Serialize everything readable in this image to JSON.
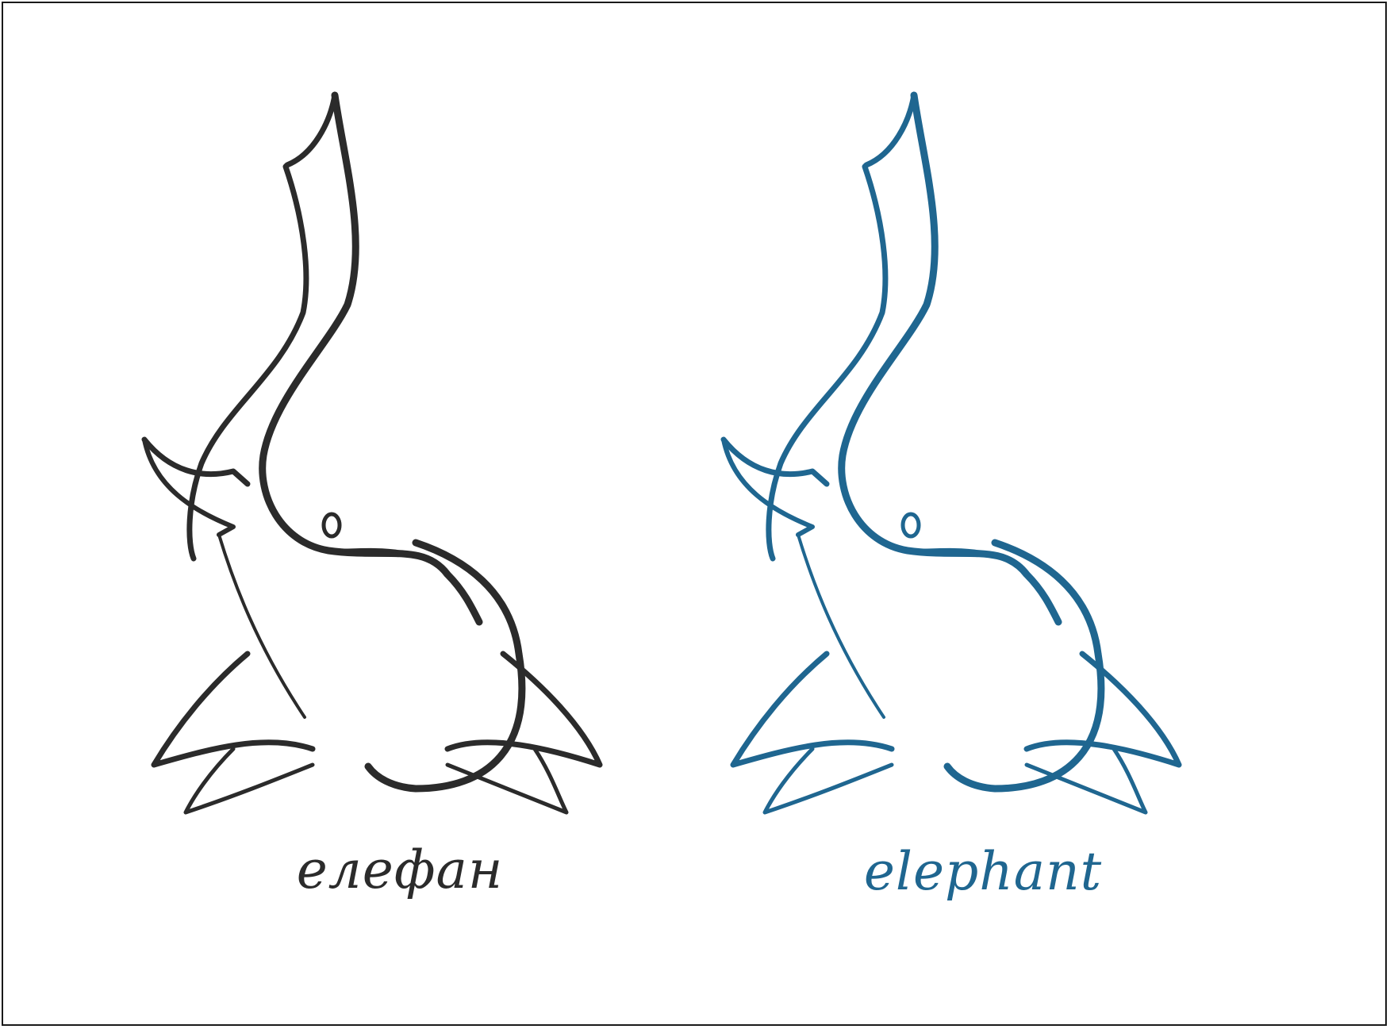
{
  "logos": [
    {
      "wordmark": "елефан",
      "color": "#2b2b2b",
      "icon": "elephant-trunk-raised-icon"
    },
    {
      "wordmark": "elephant",
      "color": "#1f6690",
      "icon": "elephant-trunk-raised-icon"
    }
  ],
  "colors": {
    "background": "#ffffff",
    "frame": "#1a1a1a"
  }
}
